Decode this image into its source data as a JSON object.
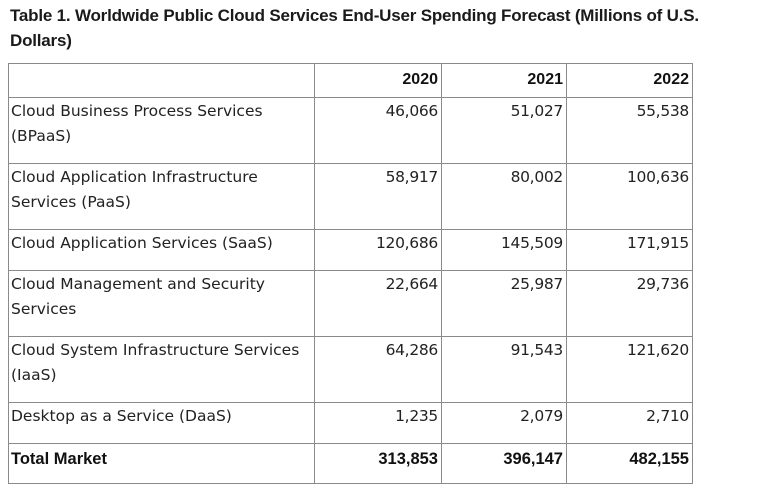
{
  "caption": "Table 1. Worldwide Public Cloud Services End-User Spending Forecast (Millions of U.S. Dollars)",
  "table": {
    "columns": [
      "",
      "2020",
      "2021",
      "2022"
    ],
    "rows": [
      {
        "label": "Cloud Business Process Services (BPaaS)",
        "values": [
          "46,066",
          "51,027",
          "55,538"
        ]
      },
      {
        "label": "Cloud Application Infrastructure Services (PaaS)",
        "values": [
          "58,917",
          "80,002",
          "100,636"
        ]
      },
      {
        "label": "Cloud Application Services (SaaS)",
        "values": [
          "120,686",
          "145,509",
          "171,915"
        ]
      },
      {
        "label": "Cloud Management and Security Services",
        "values": [
          "22,664",
          "25,987",
          "29,736"
        ]
      },
      {
        "label": "Cloud System Infrastructure Services (IaaS)",
        "values": [
          "64,286",
          "91,543",
          "121,620"
        ]
      },
      {
        "label": "Desktop as a Service (DaaS)",
        "values": [
          "1,235",
          "2,079",
          "2,710"
        ]
      }
    ],
    "total": {
      "label": "Total Market",
      "values": [
        "313,853",
        "396,147",
        "482,155"
      ]
    }
  }
}
